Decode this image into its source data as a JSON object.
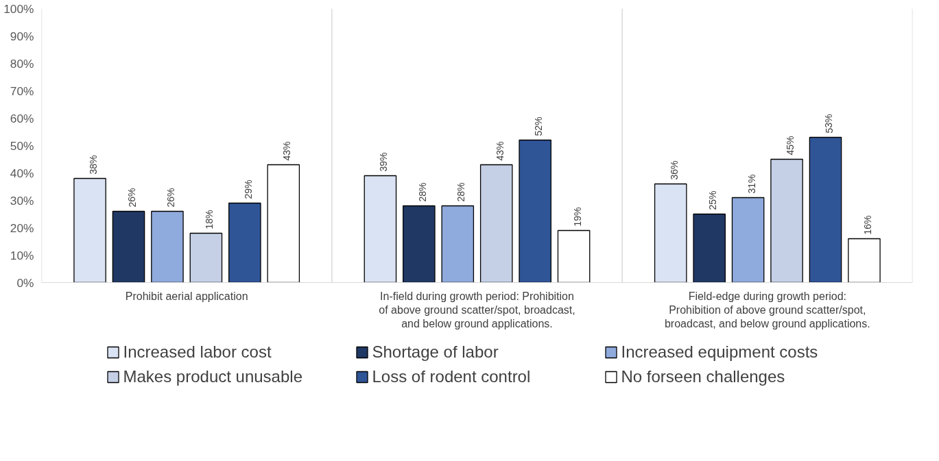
{
  "chart_data": {
    "type": "bar",
    "categories": [
      "Prohibit aerial application",
      "In-field during growth period: Prohibition of above ground scatter/spot, broadcast, and below ground applications.",
      "Field-edge during growth period: Prohibition of above ground scatter/spot, broadcast, and below ground applications."
    ],
    "series": [
      {
        "name": "Increased labor cost",
        "color": "#dae3f3",
        "values": [
          38,
          39,
          36
        ],
        "value_labels": [
          "38%",
          "39%",
          "36%"
        ]
      },
      {
        "name": "Shortage of labor",
        "color": "#203864",
        "values": [
          26,
          28,
          25
        ],
        "value_labels": [
          "26%",
          "28%",
          "25%"
        ]
      },
      {
        "name": "Increased equipment costs",
        "color": "#8faadc",
        "values": [
          26,
          28,
          31
        ],
        "value_labels": [
          "26%",
          "28%",
          "31%"
        ]
      },
      {
        "name": "Makes product unusable",
        "color": "#c5d0e6",
        "values": [
          18,
          43,
          45
        ],
        "value_labels": [
          "18%",
          "43%",
          "45%"
        ]
      },
      {
        "name": "Loss of rodent control",
        "color": "#2f5597",
        "values": [
          29,
          52,
          53
        ],
        "value_labels": [
          "29%",
          "52%",
          "53%"
        ]
      },
      {
        "name": "No forseen challenges",
        "color": "#ffffff",
        "values": [
          43,
          19,
          16
        ],
        "value_labels": [
          "43%",
          "19%",
          "16%"
        ]
      }
    ],
    "ylim": [
      0,
      100
    ],
    "yticks": [
      {
        "value": 0,
        "label": "0%"
      },
      {
        "value": 10,
        "label": "10%"
      },
      {
        "value": 20,
        "label": "20%"
      },
      {
        "value": 30,
        "label": "30%"
      },
      {
        "value": 40,
        "label": "40%"
      },
      {
        "value": 50,
        "label": "50%"
      },
      {
        "value": 60,
        "label": "60%"
      },
      {
        "value": 70,
        "label": "70%"
      },
      {
        "value": 80,
        "label": "80%"
      },
      {
        "value": 90,
        "label": "90%"
      },
      {
        "value": 100,
        "label": "100%"
      }
    ],
    "grid": "x",
    "legend": "bottom"
  }
}
